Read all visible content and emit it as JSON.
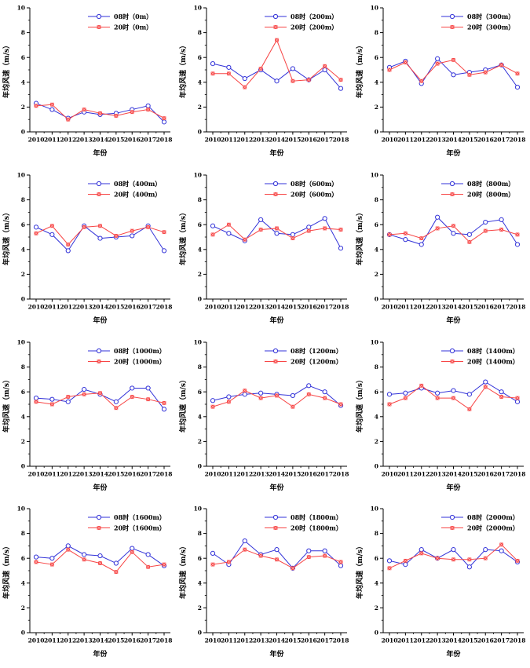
{
  "page": {
    "background": "#ffffff"
  },
  "colors": {
    "series_08": "#3232d8",
    "series_20": "#f74545",
    "axis": "#000000",
    "marker_fill_open": "#ffffff"
  },
  "axes": {
    "xlabel": "年份",
    "ylabel": "年均风速（m/s）",
    "ylim": [
      0,
      10
    ],
    "yticks": [
      0,
      2,
      4,
      6,
      8,
      10
    ],
    "yminor": [
      1,
      3,
      5,
      7,
      9
    ],
    "years": [
      "2010",
      "2011",
      "2012",
      "2013",
      "2014",
      "2015",
      "2016",
      "2017",
      "2018"
    ],
    "grid": "off",
    "legend_position": "top-right"
  },
  "chart_data": [
    {
      "type": "line",
      "height_label": "0m",
      "legend": [
        "08时（0m）",
        "20时（0m）"
      ],
      "series": [
        {
          "name": "08时",
          "marker": "open-circle",
          "color_key": "series_08",
          "values": [
            2.3,
            1.8,
            1.1,
            1.6,
            1.4,
            1.5,
            1.8,
            2.1,
            0.8
          ]
        },
        {
          "name": "20时",
          "marker": "filled-square",
          "color_key": "series_20",
          "values": [
            2.1,
            2.2,
            1.0,
            1.8,
            1.5,
            1.3,
            1.6,
            1.8,
            1.1
          ]
        }
      ]
    },
    {
      "type": "line",
      "height_label": "200m",
      "legend": [
        "08时（200m）",
        "20时（200m）"
      ],
      "series": [
        {
          "name": "08时",
          "marker": "open-circle",
          "color_key": "series_08",
          "values": [
            5.5,
            5.2,
            4.3,
            5.0,
            4.1,
            5.1,
            4.2,
            5.0,
            3.5
          ]
        },
        {
          "name": "20时",
          "marker": "filled-square",
          "color_key": "series_20",
          "values": [
            4.7,
            4.7,
            3.6,
            5.1,
            7.4,
            4.1,
            4.2,
            5.3,
            4.2
          ]
        }
      ]
    },
    {
      "type": "line",
      "height_label": "300m",
      "legend": [
        "08时（300m）",
        "20时（300m）"
      ],
      "series": [
        {
          "name": "08时",
          "marker": "open-circle",
          "color_key": "series_08",
          "values": [
            5.2,
            5.7,
            3.9,
            5.9,
            4.6,
            4.8,
            5.0,
            5.4,
            3.6
          ]
        },
        {
          "name": "20时",
          "marker": "filled-square",
          "color_key": "series_20",
          "values": [
            5.0,
            5.6,
            4.1,
            5.5,
            5.8,
            4.6,
            4.8,
            5.4,
            4.7
          ]
        }
      ]
    },
    {
      "type": "line",
      "height_label": "400m",
      "legend": [
        "08时（400m）",
        "20时（400m）"
      ],
      "series": [
        {
          "name": "08时",
          "marker": "open-circle",
          "color_key": "series_08",
          "values": [
            5.8,
            5.2,
            3.9,
            5.9,
            4.9,
            5.0,
            5.1,
            5.9,
            3.9
          ]
        },
        {
          "name": "20时",
          "marker": "filled-square",
          "color_key": "series_20",
          "values": [
            5.3,
            5.9,
            4.4,
            5.8,
            5.9,
            5.1,
            5.5,
            5.8,
            5.4
          ]
        }
      ]
    },
    {
      "type": "line",
      "height_label": "600m",
      "legend": [
        "08时（600m）",
        "20时（600m）"
      ],
      "series": [
        {
          "name": "08时",
          "marker": "open-circle",
          "color_key": "series_08",
          "values": [
            5.9,
            5.3,
            4.7,
            6.4,
            5.3,
            5.2,
            5.8,
            6.5,
            4.1
          ]
        },
        {
          "name": "20时",
          "marker": "filled-square",
          "color_key": "series_20",
          "values": [
            5.2,
            6.0,
            4.8,
            5.6,
            5.7,
            4.9,
            5.5,
            5.7,
            5.6
          ]
        }
      ]
    },
    {
      "type": "line",
      "height_label": "800m",
      "legend": [
        "08时（800m）",
        "20时（800m）"
      ],
      "series": [
        {
          "name": "08时",
          "marker": "open-circle",
          "color_key": "series_08",
          "values": [
            5.2,
            4.8,
            4.4,
            6.6,
            5.3,
            5.2,
            6.2,
            6.4,
            4.4
          ]
        },
        {
          "name": "20时",
          "marker": "filled-square",
          "color_key": "series_20",
          "values": [
            5.2,
            5.3,
            4.9,
            5.7,
            5.9,
            4.6,
            5.5,
            5.6,
            5.2
          ]
        }
      ]
    },
    {
      "type": "line",
      "height_label": "1000m",
      "legend": [
        "08时（1000m）",
        "20时（1000m）"
      ],
      "series": [
        {
          "name": "08时",
          "marker": "open-circle",
          "color_key": "series_08",
          "values": [
            5.5,
            5.4,
            5.2,
            6.2,
            5.8,
            5.2,
            6.3,
            6.3,
            4.6
          ]
        },
        {
          "name": "20时",
          "marker": "filled-square",
          "color_key": "series_20",
          "values": [
            5.2,
            5.0,
            5.6,
            5.8,
            5.9,
            4.7,
            5.6,
            5.4,
            5.1
          ]
        }
      ]
    },
    {
      "type": "line",
      "height_label": "1200m",
      "legend": [
        "08时（1200m）",
        "20时（1200m）"
      ],
      "series": [
        {
          "name": "08时",
          "marker": "open-circle",
          "color_key": "series_08",
          "values": [
            5.3,
            5.6,
            5.8,
            5.9,
            5.8,
            5.7,
            6.5,
            6.0,
            4.9
          ]
        },
        {
          "name": "20时",
          "marker": "filled-square",
          "color_key": "series_20",
          "values": [
            4.8,
            5.2,
            6.1,
            5.5,
            5.7,
            4.8,
            5.8,
            5.5,
            5.0
          ]
        }
      ]
    },
    {
      "type": "line",
      "height_label": "1400m",
      "legend": [
        "08时（1400m）",
        "20时（1400m）"
      ],
      "series": [
        {
          "name": "08时",
          "marker": "open-circle",
          "color_key": "series_08",
          "values": [
            5.8,
            5.9,
            6.3,
            5.9,
            6.1,
            5.8,
            6.8,
            6.0,
            5.2
          ]
        },
        {
          "name": "20时",
          "marker": "filled-square",
          "color_key": "series_20",
          "values": [
            5.0,
            5.5,
            6.5,
            5.5,
            5.5,
            4.6,
            6.4,
            5.6,
            5.5
          ]
        }
      ]
    },
    {
      "type": "line",
      "height_label": "1600m",
      "legend": [
        "08时（1600m）",
        "20时（1600m）"
      ],
      "series": [
        {
          "name": "08时",
          "marker": "open-circle",
          "color_key": "series_08",
          "values": [
            6.1,
            6.0,
            7.0,
            6.3,
            6.2,
            5.6,
            6.8,
            6.3,
            5.4
          ]
        },
        {
          "name": "20时",
          "marker": "filled-square",
          "color_key": "series_20",
          "values": [
            5.7,
            5.5,
            6.7,
            5.9,
            5.6,
            4.9,
            6.5,
            5.3,
            5.5
          ]
        }
      ]
    },
    {
      "type": "line",
      "height_label": "1800m",
      "legend": [
        "08时（1800m）",
        "20时（1800m）"
      ],
      "series": [
        {
          "name": "08时",
          "marker": "open-circle",
          "color_key": "series_08",
          "values": [
            6.4,
            5.5,
            7.4,
            6.3,
            6.7,
            5.2,
            6.6,
            6.6,
            5.4
          ]
        },
        {
          "name": "20时",
          "marker": "filled-square",
          "color_key": "series_20",
          "values": [
            5.5,
            5.7,
            6.7,
            6.2,
            5.9,
            5.2,
            6.1,
            6.2,
            5.7
          ]
        }
      ]
    },
    {
      "type": "line",
      "height_label": "2000m",
      "legend": [
        "08时（2000m）",
        "20时（2000m）"
      ],
      "series": [
        {
          "name": "08时",
          "marker": "open-circle",
          "color_key": "series_08",
          "values": [
            5.8,
            5.5,
            6.7,
            6.0,
            6.7,
            5.3,
            6.7,
            6.6,
            5.7
          ]
        },
        {
          "name": "20时",
          "marker": "filled-square",
          "color_key": "series_20",
          "values": [
            5.2,
            5.8,
            6.4,
            6.0,
            5.9,
            5.9,
            6.0,
            7.1,
            5.8
          ]
        }
      ]
    }
  ]
}
